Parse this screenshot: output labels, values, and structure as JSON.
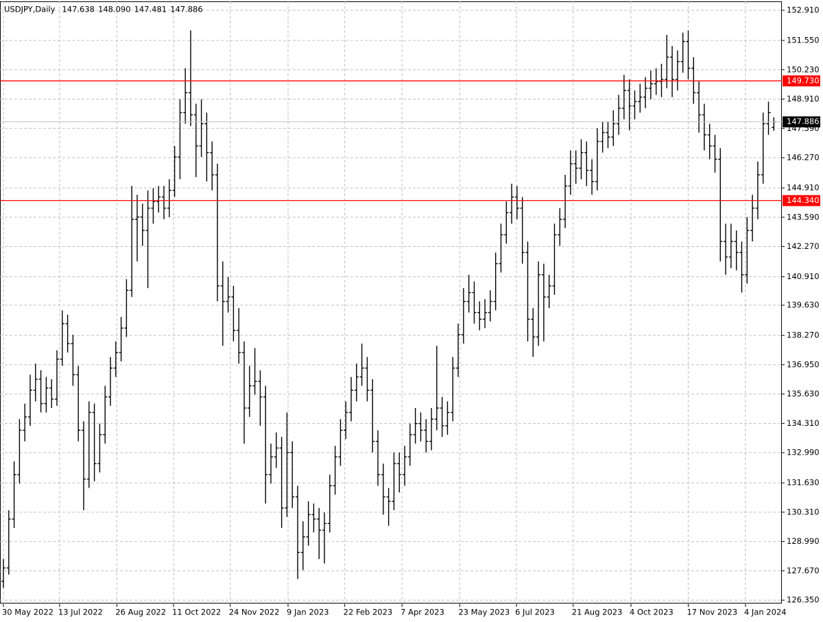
{
  "chart_data": {
    "type": "ohlc",
    "title": "USDJPY,Daily",
    "header_values": [
      "147.638",
      "148.090",
      "147.481",
      "147.886"
    ],
    "color": "#000000",
    "grid": true,
    "xlim": [
      -0.64,
      145.5
    ],
    "xticks": [
      {
        "value": 0,
        "label": "30 May 2022"
      },
      {
        "value": 10.5,
        "label": "13 Jul 2022"
      },
      {
        "value": 21.2,
        "label": "26 Aug 2022"
      },
      {
        "value": 31.8,
        "label": "11 Oct 2022"
      },
      {
        "value": 42.4,
        "label": "24 Nov 2022"
      },
      {
        "value": 53.2,
        "label": "9 Jan 2023"
      },
      {
        "value": 63.8,
        "label": "22 Feb 2023"
      },
      {
        "value": 74.5,
        "label": "7 Apr 2023"
      },
      {
        "value": 85.3,
        "label": "23 May 2023"
      },
      {
        "value": 95.9,
        "label": "6 Jul 2023"
      },
      {
        "value": 106.5,
        "label": "21 Aug 2023"
      },
      {
        "value": 117.3,
        "label": "4 Oct 2023"
      },
      {
        "value": 128,
        "label": "17 Nov 2023"
      },
      {
        "value": 138.7,
        "label": "4 Jan 2024"
      }
    ],
    "ylim": [
      126.2,
      153.31
    ],
    "yticks": [
      {
        "value": 152.91,
        "label": "152.910"
      },
      {
        "value": 151.55,
        "label": "151.550"
      },
      {
        "value": 150.23,
        "label": "150.230"
      },
      {
        "value": 148.91,
        "label": "148.910"
      },
      {
        "value": 147.59,
        "label": "147.590"
      },
      {
        "value": 146.27,
        "label": "146.270"
      },
      {
        "value": 144.91,
        "label": "144.910"
      },
      {
        "value": 143.59,
        "label": "143.590"
      },
      {
        "value": 142.27,
        "label": "142.270"
      },
      {
        "value": 140.91,
        "label": "140.910"
      },
      {
        "value": 139.63,
        "label": "139.630"
      },
      {
        "value": 138.27,
        "label": "138.270"
      },
      {
        "value": 136.95,
        "label": "136.950"
      },
      {
        "value": 135.63,
        "label": "135.630"
      },
      {
        "value": 134.31,
        "label": "134.310"
      },
      {
        "value": 132.99,
        "label": "132.990"
      },
      {
        "value": 131.63,
        "label": "131.630"
      },
      {
        "value": 130.31,
        "label": "130.310"
      },
      {
        "value": 128.99,
        "label": "128.990"
      },
      {
        "value": 127.67,
        "label": "127.670"
      },
      {
        "value": 126.35,
        "label": "126.350"
      }
    ],
    "hlines": [
      {
        "value": 149.73,
        "label": "149.730",
        "color": "#ff0000"
      },
      {
        "value": 144.34,
        "label": "144.340",
        "color": "#ff0000"
      }
    ],
    "last_price": {
      "value": 147.886,
      "label": "147.886",
      "color": "#000000",
      "line_color": "#c0c0c0"
    },
    "bars": [
      [
        127.2,
        128.2,
        126.9,
        127.8
      ],
      [
        127.8,
        130.4,
        127.5,
        130.0
      ],
      [
        130.0,
        132.6,
        129.6,
        132.0
      ],
      [
        132.0,
        134.5,
        131.6,
        134.0
      ],
      [
        134.0,
        135.2,
        133.5,
        134.6
      ],
      [
        134.6,
        136.5,
        134.2,
        135.8
      ],
      [
        135.8,
        137.0,
        135.3,
        136.3
      ],
      [
        136.3,
        136.7,
        134.8,
        135.2
      ],
      [
        135.2,
        136.4,
        134.8,
        135.9
      ],
      [
        135.9,
        136.3,
        135.0,
        135.4
      ],
      [
        135.4,
        137.6,
        135.1,
        137.2
      ],
      [
        137.2,
        139.4,
        136.9,
        138.8
      ],
      [
        138.8,
        139.2,
        137.5,
        137.9
      ],
      [
        137.9,
        138.3,
        136.0,
        136.5
      ],
      [
        136.5,
        136.9,
        133.5,
        134.0
      ],
      [
        134.0,
        134.4,
        130.4,
        131.8
      ],
      [
        131.8,
        135.3,
        131.4,
        134.8
      ],
      [
        134.8,
        135.2,
        131.7,
        132.5
      ],
      [
        132.5,
        134.3,
        132.1,
        133.8
      ],
      [
        133.8,
        136.0,
        133.4,
        135.5
      ],
      [
        135.5,
        137.3,
        135.1,
        136.8
      ],
      [
        136.8,
        138.0,
        136.4,
        137.5
      ],
      [
        137.5,
        139.1,
        137.1,
        138.6
      ],
      [
        138.6,
        140.8,
        138.2,
        140.3
      ],
      [
        140.3,
        145.0,
        140.0,
        143.5
      ],
      [
        143.5,
        144.6,
        141.6,
        143.6
      ],
      [
        143.6,
        144.2,
        142.3,
        143.0
      ],
      [
        143.0,
        144.8,
        140.4,
        144.0
      ],
      [
        144.0,
        144.9,
        143.3,
        144.3
      ],
      [
        144.3,
        145.0,
        143.8,
        144.5
      ],
      [
        144.5,
        145.0,
        143.5,
        144.0
      ],
      [
        144.0,
        145.3,
        143.6,
        144.8
      ],
      [
        144.8,
        146.8,
        144.5,
        146.3
      ],
      [
        146.3,
        148.9,
        145.3,
        148.3
      ],
      [
        148.3,
        150.3,
        147.8,
        149.2
      ],
      [
        149.2,
        152.0,
        147.7,
        148.2
      ],
      [
        148.2,
        148.7,
        145.4,
        146.8
      ],
      [
        146.8,
        148.9,
        146.3,
        147.8
      ],
      [
        147.8,
        148.3,
        145.2,
        146.5
      ],
      [
        146.5,
        147.0,
        144.8,
        145.5
      ],
      [
        145.5,
        146.0,
        139.8,
        140.5
      ],
      [
        140.5,
        141.6,
        137.8,
        139.8
      ],
      [
        139.8,
        140.9,
        139.3,
        140.0
      ],
      [
        140.0,
        140.5,
        138.0,
        138.5
      ],
      [
        138.5,
        139.5,
        137.0,
        137.5
      ],
      [
        137.5,
        138.0,
        133.4,
        135.0
      ],
      [
        135.0,
        136.9,
        134.6,
        136.0
      ],
      [
        136.0,
        137.7,
        135.6,
        136.2
      ],
      [
        136.2,
        136.7,
        134.2,
        135.5
      ],
      [
        135.5,
        136.0,
        130.7,
        132.0
      ],
      [
        132.0,
        133.4,
        131.6,
        132.8
      ],
      [
        132.8,
        133.9,
        132.3,
        133.2
      ],
      [
        133.2,
        133.7,
        129.6,
        130.5
      ],
      [
        130.5,
        134.8,
        130.1,
        133.0
      ],
      [
        133.0,
        133.5,
        130.5,
        131.0
      ],
      [
        131.0,
        131.5,
        127.3,
        128.5
      ],
      [
        128.5,
        129.9,
        127.7,
        129.2
      ],
      [
        129.2,
        130.8,
        128.8,
        130.2
      ],
      [
        130.2,
        130.7,
        129.4,
        130.0
      ],
      [
        130.0,
        130.5,
        128.2,
        129.5
      ],
      [
        129.5,
        130.3,
        128.0,
        129.8
      ],
      [
        129.8,
        132.0,
        129.4,
        131.5
      ],
      [
        131.5,
        133.3,
        131.1,
        132.8
      ],
      [
        132.8,
        134.5,
        132.4,
        134.0
      ],
      [
        134.0,
        135.3,
        133.6,
        134.8
      ],
      [
        134.8,
        136.4,
        134.4,
        135.8
      ],
      [
        135.8,
        137.0,
        135.3,
        136.4
      ],
      [
        136.4,
        137.9,
        136.0,
        136.8
      ],
      [
        136.8,
        137.3,
        135.3,
        135.8
      ],
      [
        135.8,
        136.3,
        133.0,
        133.5
      ],
      [
        133.5,
        134.0,
        131.5,
        132.0
      ],
      [
        132.0,
        132.5,
        130.2,
        131.0
      ],
      [
        131.0,
        131.4,
        129.7,
        130.8
      ],
      [
        130.8,
        133.0,
        130.4,
        132.5
      ],
      [
        132.5,
        133.0,
        131.2,
        132.0
      ],
      [
        132.0,
        133.3,
        131.5,
        132.8
      ],
      [
        132.8,
        134.3,
        132.4,
        133.8
      ],
      [
        133.8,
        135.0,
        133.4,
        134.3
      ],
      [
        134.3,
        134.8,
        133.5,
        134.0
      ],
      [
        134.0,
        134.5,
        133.0,
        133.5
      ],
      [
        133.5,
        135.0,
        133.1,
        134.5
      ],
      [
        134.5,
        137.8,
        134.0,
        135.0
      ],
      [
        135.0,
        135.5,
        133.7,
        134.2
      ],
      [
        134.2,
        135.3,
        133.8,
        134.8
      ],
      [
        134.8,
        137.3,
        134.4,
        136.8
      ],
      [
        136.8,
        138.8,
        136.4,
        138.3
      ],
      [
        138.3,
        140.4,
        137.9,
        139.8
      ],
      [
        139.8,
        141.0,
        139.3,
        140.2
      ],
      [
        140.2,
        140.7,
        138.8,
        139.3
      ],
      [
        139.3,
        139.8,
        138.5,
        139.0
      ],
      [
        139.0,
        139.9,
        138.6,
        139.3
      ],
      [
        139.3,
        140.3,
        138.9,
        139.8
      ],
      [
        139.8,
        142.0,
        139.4,
        141.5
      ],
      [
        141.5,
        143.3,
        141.1,
        142.8
      ],
      [
        142.8,
        144.3,
        142.4,
        143.8
      ],
      [
        143.8,
        145.1,
        143.3,
        144.5
      ],
      [
        144.5,
        145.0,
        143.5,
        144.0
      ],
      [
        144.0,
        144.5,
        141.5,
        142.0
      ],
      [
        142.0,
        142.5,
        138.0,
        139.0
      ],
      [
        139.0,
        139.5,
        137.3,
        138.2
      ],
      [
        138.2,
        141.6,
        137.8,
        141.0
      ],
      [
        141.0,
        141.5,
        138.0,
        140.0
      ],
      [
        140.0,
        141.0,
        139.5,
        140.5
      ],
      [
        140.5,
        143.3,
        140.1,
        142.8
      ],
      [
        142.8,
        144.0,
        142.3,
        143.5
      ],
      [
        143.5,
        145.5,
        143.1,
        145.0
      ],
      [
        145.0,
        146.6,
        144.6,
        146.0
      ],
      [
        146.0,
        146.6,
        145.1,
        145.8
      ],
      [
        145.8,
        147.1,
        145.3,
        146.5
      ],
      [
        146.5,
        147.0,
        145.0,
        145.7
      ],
      [
        145.7,
        146.2,
        144.6,
        145.2
      ],
      [
        145.2,
        147.6,
        144.8,
        147.0
      ],
      [
        147.0,
        147.9,
        146.5,
        147.4
      ],
      [
        147.4,
        147.9,
        146.7,
        147.2
      ],
      [
        147.2,
        148.4,
        146.8,
        147.8
      ],
      [
        147.8,
        149.1,
        147.3,
        148.5
      ],
      [
        148.5,
        150.0,
        148.0,
        149.3
      ],
      [
        149.3,
        149.8,
        147.5,
        148.6
      ],
      [
        148.6,
        149.3,
        148.0,
        148.8
      ],
      [
        148.8,
        149.6,
        148.3,
        149.0
      ],
      [
        149.0,
        149.9,
        148.5,
        149.4
      ],
      [
        149.4,
        150.2,
        148.9,
        149.6
      ],
      [
        149.6,
        150.3,
        149.1,
        149.7
      ],
      [
        149.7,
        150.5,
        149.0,
        149.8
      ],
      [
        149.8,
        151.8,
        149.4,
        150.8
      ],
      [
        150.8,
        151.3,
        149.0,
        149.8
      ],
      [
        149.8,
        151.1,
        149.3,
        150.6
      ],
      [
        150.6,
        151.9,
        150.1,
        151.5
      ],
      [
        151.5,
        152.0,
        149.8,
        150.3
      ],
      [
        150.3,
        150.8,
        148.7,
        149.2
      ],
      [
        149.2,
        149.7,
        147.4,
        148.2
      ],
      [
        148.2,
        148.7,
        146.6,
        147.3
      ],
      [
        147.3,
        147.8,
        146.2,
        146.8
      ],
      [
        146.8,
        147.3,
        145.6,
        146.2
      ],
      [
        146.2,
        146.7,
        141.6,
        142.5
      ],
      [
        142.5,
        143.3,
        141.0,
        141.8
      ],
      [
        141.8,
        143.3,
        141.3,
        142.5
      ],
      [
        142.5,
        143.0,
        141.2,
        142.0
      ],
      [
        142.0,
        142.5,
        140.2,
        141.0
      ],
      [
        141.0,
        143.6,
        140.6,
        143.0
      ],
      [
        143.0,
        144.6,
        142.5,
        144.0
      ],
      [
        144.0,
        146.1,
        143.5,
        145.5
      ],
      [
        145.5,
        148.3,
        145.1,
        147.8
      ],
      [
        147.8,
        148.8,
        147.3,
        148.3
      ],
      [
        147.638,
        148.09,
        147.481,
        147.886
      ]
    ]
  }
}
